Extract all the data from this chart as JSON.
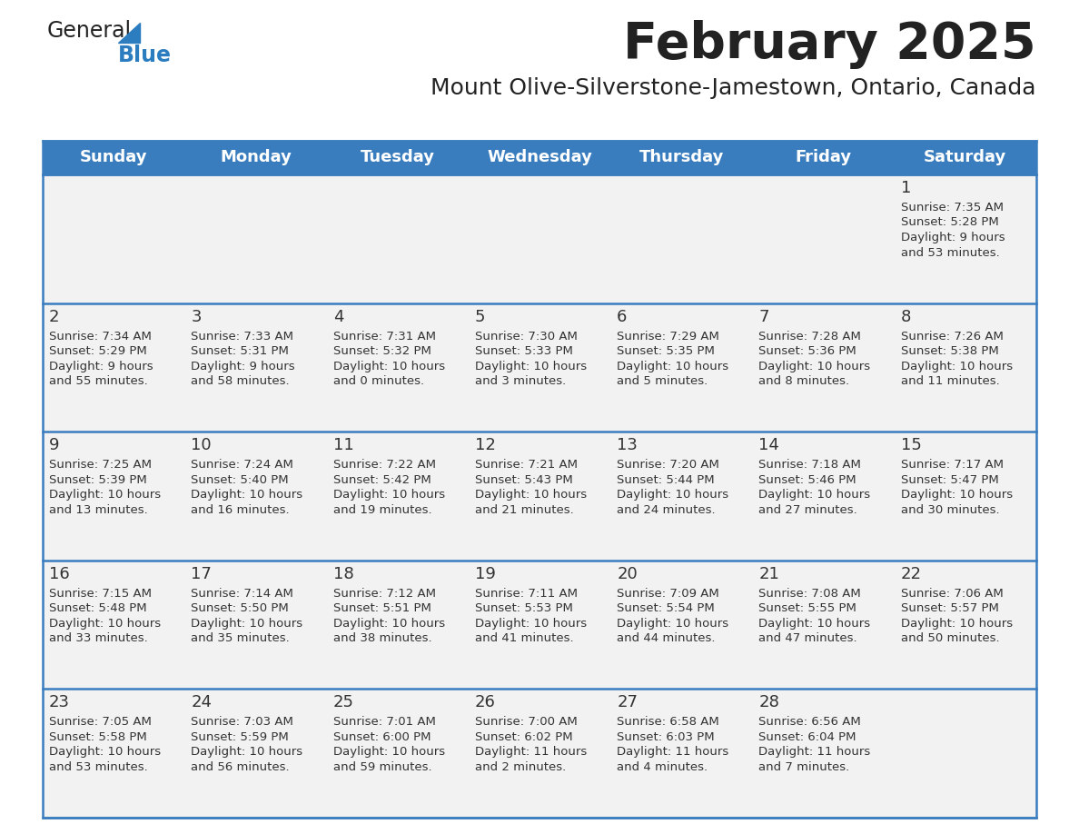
{
  "title": "February 2025",
  "subtitle": "Mount Olive-Silverstone-Jamestown, Ontario, Canada",
  "days_of_week": [
    "Sunday",
    "Monday",
    "Tuesday",
    "Wednesday",
    "Thursday",
    "Friday",
    "Saturday"
  ],
  "header_bg": "#3a7dbf",
  "header_text": "#ffffff",
  "cell_bg": "#f2f2f2",
  "border_color": "#3a7dbf",
  "title_color": "#222222",
  "subtitle_color": "#222222",
  "day_number_color": "#333333",
  "cell_text_color": "#333333",
  "logo_black": "#222222",
  "logo_blue": "#2b7dc0",
  "calendar_data": [
    [
      null,
      null,
      null,
      null,
      null,
      null,
      {
        "day": "1",
        "sunrise": "7:35 AM",
        "sunset": "5:28 PM",
        "daylight1": "9 hours",
        "daylight2": "and 53 minutes."
      }
    ],
    [
      {
        "day": "2",
        "sunrise": "7:34 AM",
        "sunset": "5:29 PM",
        "daylight1": "9 hours",
        "daylight2": "and 55 minutes."
      },
      {
        "day": "3",
        "sunrise": "7:33 AM",
        "sunset": "5:31 PM",
        "daylight1": "9 hours",
        "daylight2": "and 58 minutes."
      },
      {
        "day": "4",
        "sunrise": "7:31 AM",
        "sunset": "5:32 PM",
        "daylight1": "10 hours",
        "daylight2": "and 0 minutes."
      },
      {
        "day": "5",
        "sunrise": "7:30 AM",
        "sunset": "5:33 PM",
        "daylight1": "10 hours",
        "daylight2": "and 3 minutes."
      },
      {
        "day": "6",
        "sunrise": "7:29 AM",
        "sunset": "5:35 PM",
        "daylight1": "10 hours",
        "daylight2": "and 5 minutes."
      },
      {
        "day": "7",
        "sunrise": "7:28 AM",
        "sunset": "5:36 PM",
        "daylight1": "10 hours",
        "daylight2": "and 8 minutes."
      },
      {
        "day": "8",
        "sunrise": "7:26 AM",
        "sunset": "5:38 PM",
        "daylight1": "10 hours",
        "daylight2": "and 11 minutes."
      }
    ],
    [
      {
        "day": "9",
        "sunrise": "7:25 AM",
        "sunset": "5:39 PM",
        "daylight1": "10 hours",
        "daylight2": "and 13 minutes."
      },
      {
        "day": "10",
        "sunrise": "7:24 AM",
        "sunset": "5:40 PM",
        "daylight1": "10 hours",
        "daylight2": "and 16 minutes."
      },
      {
        "day": "11",
        "sunrise": "7:22 AM",
        "sunset": "5:42 PM",
        "daylight1": "10 hours",
        "daylight2": "and 19 minutes."
      },
      {
        "day": "12",
        "sunrise": "7:21 AM",
        "sunset": "5:43 PM",
        "daylight1": "10 hours",
        "daylight2": "and 21 minutes."
      },
      {
        "day": "13",
        "sunrise": "7:20 AM",
        "sunset": "5:44 PM",
        "daylight1": "10 hours",
        "daylight2": "and 24 minutes."
      },
      {
        "day": "14",
        "sunrise": "7:18 AM",
        "sunset": "5:46 PM",
        "daylight1": "10 hours",
        "daylight2": "and 27 minutes."
      },
      {
        "day": "15",
        "sunrise": "7:17 AM",
        "sunset": "5:47 PM",
        "daylight1": "10 hours",
        "daylight2": "and 30 minutes."
      }
    ],
    [
      {
        "day": "16",
        "sunrise": "7:15 AM",
        "sunset": "5:48 PM",
        "daylight1": "10 hours",
        "daylight2": "and 33 minutes."
      },
      {
        "day": "17",
        "sunrise": "7:14 AM",
        "sunset": "5:50 PM",
        "daylight1": "10 hours",
        "daylight2": "and 35 minutes."
      },
      {
        "day": "18",
        "sunrise": "7:12 AM",
        "sunset": "5:51 PM",
        "daylight1": "10 hours",
        "daylight2": "and 38 minutes."
      },
      {
        "day": "19",
        "sunrise": "7:11 AM",
        "sunset": "5:53 PM",
        "daylight1": "10 hours",
        "daylight2": "and 41 minutes."
      },
      {
        "day": "20",
        "sunrise": "7:09 AM",
        "sunset": "5:54 PM",
        "daylight1": "10 hours",
        "daylight2": "and 44 minutes."
      },
      {
        "day": "21",
        "sunrise": "7:08 AM",
        "sunset": "5:55 PM",
        "daylight1": "10 hours",
        "daylight2": "and 47 minutes."
      },
      {
        "day": "22",
        "sunrise": "7:06 AM",
        "sunset": "5:57 PM",
        "daylight1": "10 hours",
        "daylight2": "and 50 minutes."
      }
    ],
    [
      {
        "day": "23",
        "sunrise": "7:05 AM",
        "sunset": "5:58 PM",
        "daylight1": "10 hours",
        "daylight2": "and 53 minutes."
      },
      {
        "day": "24",
        "sunrise": "7:03 AM",
        "sunset": "5:59 PM",
        "daylight1": "10 hours",
        "daylight2": "and 56 minutes."
      },
      {
        "day": "25",
        "sunrise": "7:01 AM",
        "sunset": "6:00 PM",
        "daylight1": "10 hours",
        "daylight2": "and 59 minutes."
      },
      {
        "day": "26",
        "sunrise": "7:00 AM",
        "sunset": "6:02 PM",
        "daylight1": "11 hours",
        "daylight2": "and 2 minutes."
      },
      {
        "day": "27",
        "sunrise": "6:58 AM",
        "sunset": "6:03 PM",
        "daylight1": "11 hours",
        "daylight2": "and 4 minutes."
      },
      {
        "day": "28",
        "sunrise": "6:56 AM",
        "sunset": "6:04 PM",
        "daylight1": "11 hours",
        "daylight2": "and 7 minutes."
      },
      null
    ]
  ]
}
